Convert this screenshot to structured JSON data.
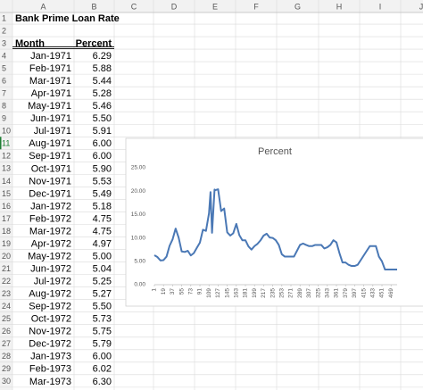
{
  "sheet": {
    "columns": [
      "A",
      "B",
      "C",
      "D",
      "E",
      "F",
      "G",
      "H",
      "I",
      "J"
    ],
    "row_numbers": [
      1,
      2,
      3,
      4,
      5,
      6,
      7,
      8,
      9,
      10,
      11,
      12,
      13,
      14,
      15,
      16,
      17,
      18,
      19,
      20,
      21,
      22,
      23,
      24,
      25,
      26,
      27,
      28,
      29,
      30
    ],
    "title": "Bank Prime Loan Rate",
    "header": [
      "Month",
      "Percent"
    ],
    "data": [
      [
        "Jan-1971",
        "6.29"
      ],
      [
        "Feb-1971",
        "5.88"
      ],
      [
        "Mar-1971",
        "5.44"
      ],
      [
        "Apr-1971",
        "5.28"
      ],
      [
        "May-1971",
        "5.46"
      ],
      [
        "Jun-1971",
        "5.50"
      ],
      [
        "Jul-1971",
        "5.91"
      ],
      [
        "Aug-1971",
        "6.00"
      ],
      [
        "Sep-1971",
        "6.00"
      ],
      [
        "Oct-1971",
        "5.90"
      ],
      [
        "Nov-1971",
        "5.53"
      ],
      [
        "Dec-1971",
        "5.49"
      ],
      [
        "Jan-1972",
        "5.18"
      ],
      [
        "Feb-1972",
        "4.75"
      ],
      [
        "Mar-1972",
        "4.75"
      ],
      [
        "Apr-1972",
        "4.97"
      ],
      [
        "May-1972",
        "5.00"
      ],
      [
        "Jun-1972",
        "5.04"
      ],
      [
        "Jul-1972",
        "5.25"
      ],
      [
        "Aug-1972",
        "5.27"
      ],
      [
        "Sep-1972",
        "5.50"
      ],
      [
        "Oct-1972",
        "5.73"
      ],
      [
        "Nov-1972",
        "5.75"
      ],
      [
        "Dec-1972",
        "5.79"
      ],
      [
        "Jan-1973",
        "6.00"
      ],
      [
        "Feb-1973",
        "6.02"
      ],
      [
        "Mar-1973",
        "6.30"
      ]
    ]
  },
  "chart_data": {
    "type": "line",
    "title": "Percent",
    "color": "#4a78b5",
    "x": [
      1,
      7,
      13,
      19,
      25,
      31,
      37,
      43,
      49,
      55,
      61,
      67,
      73,
      79,
      85,
      91,
      97,
      103,
      109,
      112,
      115,
      120,
      121,
      127,
      133,
      139,
      145,
      151,
      157,
      163,
      169,
      175,
      181,
      187,
      193,
      199,
      205,
      211,
      217,
      223,
      229,
      235,
      241,
      247,
      253,
      259,
      265,
      271,
      277,
      283,
      289,
      295,
      301,
      307,
      313,
      319,
      325,
      331,
      337,
      343,
      349,
      355,
      361,
      367,
      373,
      379,
      385,
      391,
      397,
      403,
      409,
      415,
      421,
      427,
      433,
      439,
      445,
      451,
      457,
      463,
      469,
      475,
      481
    ],
    "values": [
      6.29,
      5.91,
      5.18,
      5.25,
      6.0,
      8.3,
      9.7,
      12.0,
      10.05,
      7.1,
      7.0,
      7.25,
      6.25,
      6.75,
      7.9,
      9.0,
      11.75,
      11.5,
      15.25,
      19.8,
      11.1,
      20.35,
      20.2,
      20.4,
      15.75,
      16.3,
      11.2,
      10.5,
      11.0,
      13.0,
      10.6,
      9.5,
      9.5,
      8.2,
      7.5,
      8.25,
      8.75,
      9.5,
      10.5,
      10.9,
      10.1,
      10.0,
      9.5,
      8.5,
      6.5,
      6.0,
      6.0,
      6.0,
      6.0,
      7.25,
      8.5,
      8.8,
      8.5,
      8.25,
      8.25,
      8.5,
      8.5,
      8.5,
      7.75,
      8.0,
      8.5,
      9.5,
      9.05,
      6.75,
      4.75,
      4.75,
      4.25,
      4.0,
      4.0,
      4.25,
      5.25,
      6.25,
      7.25,
      8.25,
      8.25,
      8.25,
      6.0,
      5.0,
      3.25,
      3.25,
      3.25,
      3.25,
      3.25
    ],
    "xlim": [
      1,
      481
    ],
    "xticks": [
      1,
      19,
      37,
      55,
      73,
      91,
      109,
      127,
      145,
      163,
      181,
      199,
      217,
      235,
      253,
      271,
      289,
      307,
      325,
      343,
      361,
      379,
      397,
      415,
      433,
      451,
      469
    ],
    "ylim": [
      0,
      25
    ],
    "yticks": [
      {
        "value": 0,
        "label": "0.00"
      },
      {
        "value": 5,
        "label": "5.00"
      },
      {
        "value": 10,
        "label": "10.00"
      },
      {
        "value": 15,
        "label": "15.00"
      },
      {
        "value": 20,
        "label": "20.00"
      },
      {
        "value": 25,
        "label": "25.00"
      }
    ],
    "grid": false
  }
}
